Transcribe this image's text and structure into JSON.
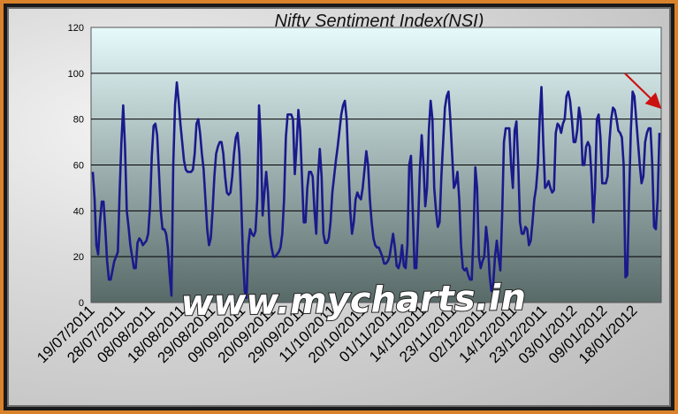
{
  "watermark": "www.mycharts.in",
  "chart_data": {
    "type": "line",
    "title": "Nifty Sentiment Index(NSI)",
    "xlabel": "",
    "ylabel": "",
    "ylim": [
      0,
      120
    ],
    "yticks": [
      0,
      20,
      40,
      60,
      80,
      100,
      120
    ],
    "grid": true,
    "x_tick_labels": [
      "19/07/2011",
      "28/07/2011",
      "08/08/2011",
      "18/08/2011",
      "29/08/2011",
      "09/09/2011",
      "20/09/2011",
      "29/09/2011",
      "11/10/2011",
      "20/10/2011",
      "01/11/2011",
      "14/11/2011",
      "23/11/2011",
      "02/12/2011",
      "14/12/2011",
      "23/12/2011",
      "03/01/2012",
      "09/01/2012",
      "18/01/2012"
    ],
    "colors": {
      "line": "#1a1a8c",
      "plot_top": "#e6fafb",
      "plot_bottom": "#586a68",
      "arrow": "#cc1111"
    },
    "series": [
      {
        "values": [
          57,
          45,
          25,
          21,
          35,
          44,
          44,
          32,
          18,
          10,
          10,
          14,
          18,
          20,
          22,
          48,
          70,
          86,
          68,
          40,
          33,
          25,
          20,
          15,
          15,
          26,
          28,
          27,
          25,
          26,
          27,
          30,
          42,
          64,
          77,
          78,
          73,
          57,
          40,
          32,
          32,
          30,
          24,
          12,
          3,
          60,
          86,
          96,
          88,
          78,
          70,
          62,
          58,
          57,
          57,
          57,
          58,
          65,
          78,
          80,
          74,
          65,
          58,
          45,
          32,
          25,
          28,
          40,
          55,
          65,
          68,
          70,
          70,
          65,
          55,
          48,
          47,
          48,
          55,
          65,
          72,
          74,
          65,
          45,
          20,
          5,
          2,
          25,
          32,
          30,
          29,
          31,
          45,
          86,
          70,
          38,
          48,
          57,
          48,
          30,
          24,
          20,
          20,
          21,
          22,
          24,
          30,
          45,
          72,
          82,
          82,
          82,
          80,
          56,
          68,
          84,
          75,
          55,
          35,
          35,
          50,
          57,
          57,
          55,
          40,
          30,
          55,
          67,
          55,
          30,
          26,
          26,
          28,
          35,
          48,
          55,
          62,
          68,
          75,
          82,
          86,
          88,
          80,
          60,
          40,
          30,
          35,
          45,
          48,
          46,
          45,
          50,
          58,
          66,
          60,
          45,
          35,
          28,
          25,
          24,
          24,
          22,
          20,
          17,
          17,
          18,
          20,
          25,
          30,
          24,
          16,
          15,
          18,
          25,
          16,
          15,
          25,
          60,
          64,
          40,
          15,
          15,
          35,
          58,
          73,
          60,
          42,
          50,
          75,
          88,
          80,
          50,
          40,
          33,
          35,
          55,
          70,
          85,
          90,
          92,
          80,
          65,
          50,
          52,
          57,
          45,
          25,
          15,
          14,
          15,
          12,
          10,
          10,
          30,
          59,
          50,
          20,
          15,
          18,
          20,
          33,
          26,
          12,
          5,
          8,
          20,
          27,
          20,
          14,
          38,
          70,
          76,
          76,
          76,
          60,
          50,
          75,
          79,
          60,
          35,
          30,
          30,
          33,
          32,
          25,
          27,
          35,
          45,
          50,
          60,
          80,
          94,
          70,
          50,
          51,
          53,
          50,
          48,
          49,
          74,
          78,
          77,
          74,
          78,
          80,
          90,
          92,
          88,
          80,
          70,
          70,
          75,
          85,
          80,
          60,
          60,
          68,
          70,
          68,
          55,
          35,
          50,
          80,
          82,
          72,
          52,
          52,
          52,
          55,
          70,
          80,
          85,
          84,
          80,
          75,
          74,
          72,
          60,
          11,
          12,
          45,
          75,
          92,
          90,
          80,
          70,
          60,
          52,
          55,
          70,
          74,
          76,
          76,
          60,
          33,
          32,
          45,
          74
        ]
      }
    ]
  }
}
